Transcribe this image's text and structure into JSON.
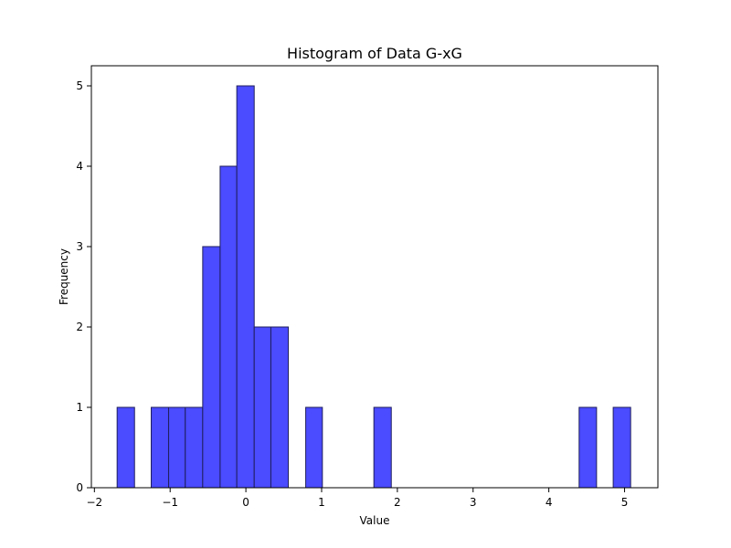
{
  "chart_data": {
    "type": "bar",
    "subtype": "histogram",
    "title": "Histogram of Data G-xG",
    "xlabel": "Value",
    "ylabel": "Frequency",
    "xlim": [
      -2.04,
      5.44
    ],
    "ylim": [
      0,
      5.25
    ],
    "x_ticks": [
      -2,
      -1,
      0,
      1,
      2,
      3,
      4,
      5
    ],
    "x_tick_labels": [
      "−2",
      "−1",
      "0",
      "1",
      "2",
      "3",
      "4",
      "5"
    ],
    "y_ticks": [
      0,
      1,
      2,
      3,
      4,
      5
    ],
    "y_tick_labels": [
      "0",
      "1",
      "2",
      "3",
      "4",
      "5"
    ],
    "bin_edges": [
      -1.7,
      -1.47,
      -1.25,
      -1.02,
      -0.8,
      -0.57,
      -0.34,
      -0.12,
      0.11,
      0.33,
      0.56,
      0.79,
      1.01,
      1.24,
      1.46,
      1.69,
      1.92,
      2.14,
      2.37,
      2.59,
      2.82,
      3.04,
      3.27,
      3.5,
      3.72,
      3.95,
      4.17,
      4.4,
      4.63,
      4.85,
      5.08
    ],
    "counts": [
      1,
      0,
      1,
      1,
      1,
      3,
      4,
      5,
      2,
      2,
      0,
      1,
      0,
      0,
      0,
      1,
      0,
      0,
      0,
      0,
      0,
      0,
      0,
      0,
      0,
      0,
      0,
      1,
      0,
      1
    ],
    "bar_color": "#4b4bff",
    "edge_color": "#1f1f5e",
    "grid": false
  }
}
